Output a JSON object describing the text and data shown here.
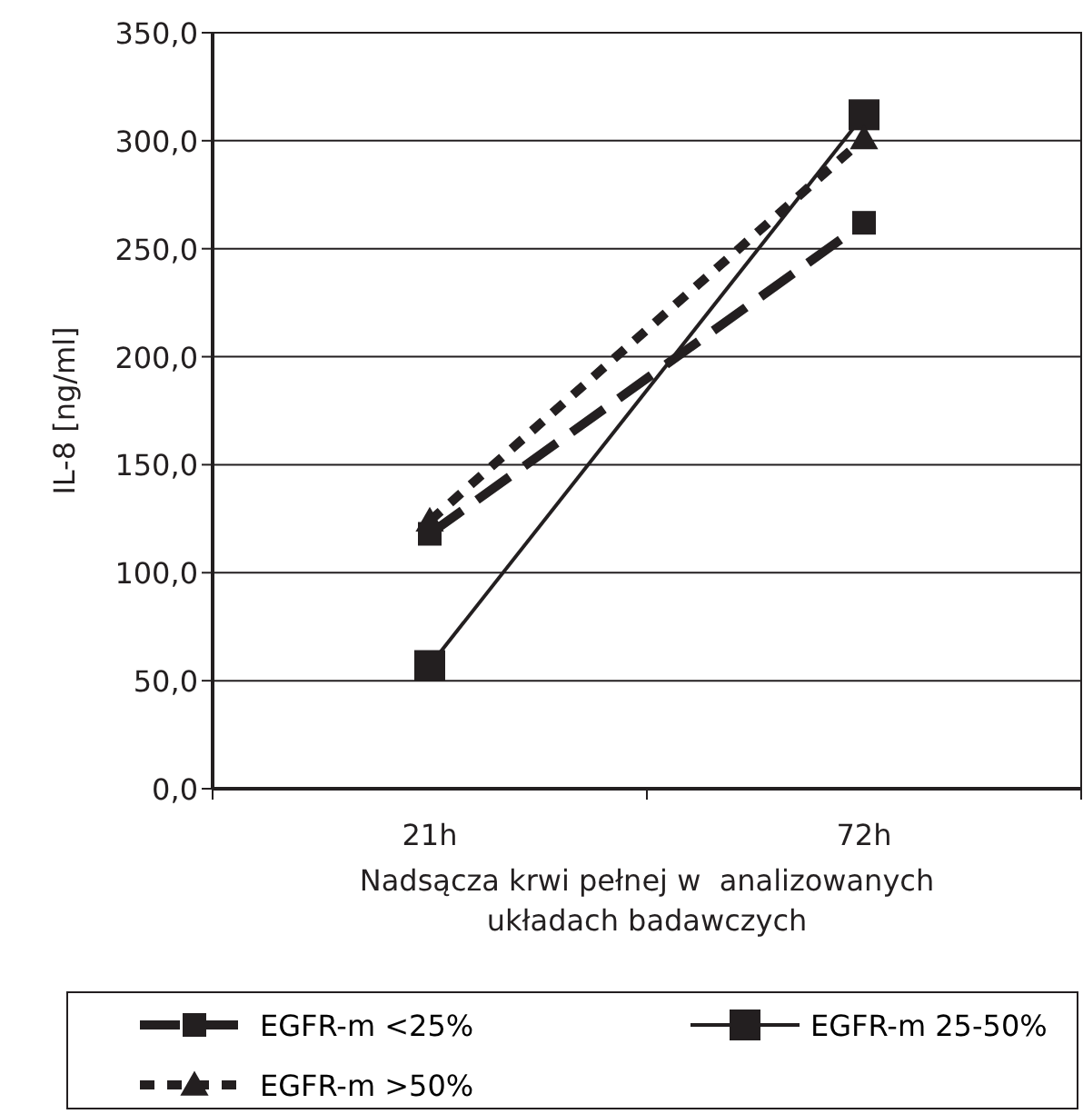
{
  "chart_data": {
    "type": "line",
    "xlabel": "Nadsącza krwi pełnej w  analizowanych układach badawczych",
    "ylabel": "IL-8 [ng/ml]",
    "categories": [
      "21h",
      "72h"
    ],
    "ylim": [
      0,
      350
    ],
    "yticks": [
      {
        "value": 0,
        "label": "0,0"
      },
      {
        "value": 50,
        "label": "50,0"
      },
      {
        "value": 100,
        "label": "100,0"
      },
      {
        "value": 150,
        "label": "150,0"
      },
      {
        "value": 200,
        "label": "200,0"
      },
      {
        "value": 250,
        "label": "250,0"
      },
      {
        "value": 300,
        "label": "300,0"
      },
      {
        "value": 350,
        "label": "350,0"
      }
    ],
    "grid": "y",
    "legend": "bottom",
    "series": [
      {
        "name": "EGFR-m <25%",
        "color": "#231f20",
        "values": [
          118,
          262
        ],
        "marker": "square",
        "line_style": "dashed"
      },
      {
        "name": "EGFR-m 25-50%",
        "color": "#231f20",
        "values": [
          57,
          312
        ],
        "marker": "square",
        "line_style": "solid"
      },
      {
        "name": "EGFR-m >50%",
        "color": "#231f20",
        "values": [
          124,
          301
        ],
        "marker": "triangle",
        "line_style": "dotted"
      }
    ]
  }
}
